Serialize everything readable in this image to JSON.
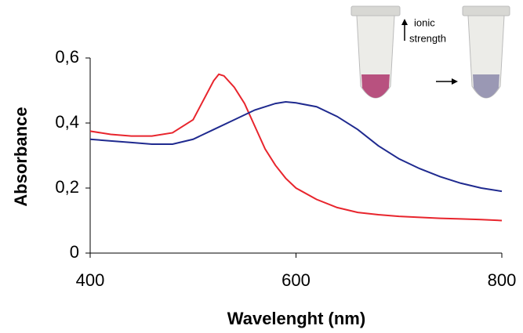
{
  "chart_data": {
    "type": "line",
    "x_label": "Wavelenght (nm)",
    "y_label": "Absorbance",
    "annotation": [
      "ionic",
      "strength"
    ],
    "xlim": [
      400,
      800
    ],
    "xticks": [
      400,
      600,
      800
    ],
    "ylim": [
      0,
      0.6
    ],
    "yticks": [
      0,
      {
        "value": 0.2,
        "label": "0,2"
      },
      {
        "value": 0.4,
        "label": "0,4"
      },
      {
        "value": 0.6,
        "label": "0,6"
      }
    ],
    "series": [
      {
        "color": "#e8252d",
        "x": [
          400,
          420,
          440,
          460,
          480,
          500,
          510,
          520,
          525,
          530,
          540,
          550,
          560,
          570,
          580,
          590,
          600,
          620,
          640,
          660,
          680,
          700,
          720,
          740,
          760,
          780,
          800
        ],
        "values": [
          0.375,
          0.365,
          0.36,
          0.36,
          0.37,
          0.41,
          0.47,
          0.53,
          0.55,
          0.545,
          0.51,
          0.46,
          0.39,
          0.32,
          0.27,
          0.23,
          0.2,
          0.165,
          0.14,
          0.125,
          0.118,
          0.113,
          0.11,
          0.107,
          0.105,
          0.103,
          0.1
        ]
      },
      {
        "color": "#1f2a8f",
        "x": [
          400,
          420,
          440,
          460,
          480,
          500,
          520,
          540,
          560,
          580,
          590,
          600,
          620,
          640,
          660,
          680,
          700,
          720,
          740,
          760,
          780,
          800
        ],
        "values": [
          0.35,
          0.345,
          0.34,
          0.335,
          0.335,
          0.35,
          0.38,
          0.41,
          0.44,
          0.46,
          0.465,
          0.462,
          0.45,
          0.42,
          0.38,
          0.33,
          0.29,
          0.26,
          0.235,
          0.215,
          0.2,
          0.19
        ]
      }
    ]
  }
}
